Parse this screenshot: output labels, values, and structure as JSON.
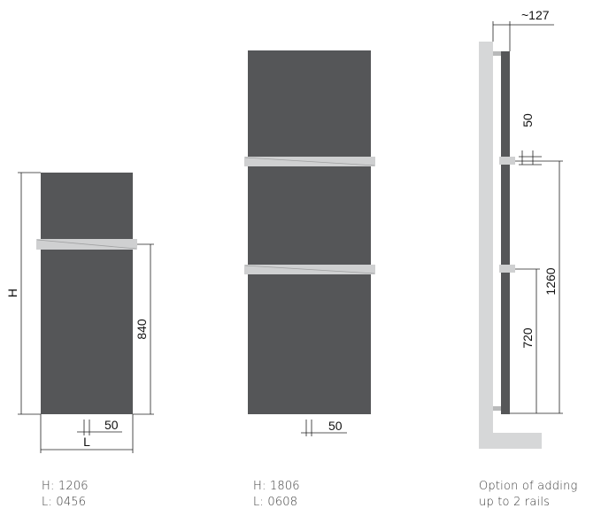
{
  "colors": {
    "panel": "#555658",
    "rail": "#cfd0d1",
    "wall": "#d6d7d8",
    "dimension_line": "#222222"
  },
  "small_radiator": {
    "label_H": "H",
    "label_L": "L",
    "rail_height": "840",
    "rail_offset": "50",
    "caption_height": "H: 1206",
    "caption_width": "L: 0456"
  },
  "large_radiator": {
    "rail_offset": "50",
    "caption_height": "H: 1806",
    "caption_width": "L: 0608"
  },
  "side_view": {
    "depth": "~127",
    "top_gap": "50",
    "upper_rail_height": "1260",
    "lower_rail_height": "720",
    "caption_line1": "Option of adding",
    "caption_line2": "up to 2 rails"
  }
}
